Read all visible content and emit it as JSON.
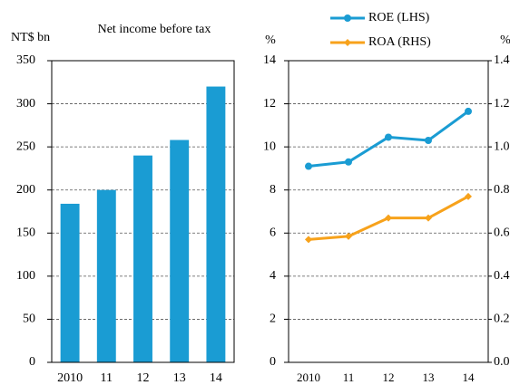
{
  "chart_data": [
    {
      "type": "bar",
      "title": "Net income before tax",
      "ylabel": "NT$ bn",
      "categories": [
        "2010",
        "11",
        "12",
        "13",
        "14"
      ],
      "values": [
        184,
        200,
        240,
        258,
        320
      ],
      "color": "#1a9cd3",
      "ylim": [
        0,
        350
      ],
      "yticks": [
        0,
        50,
        100,
        150,
        200,
        250,
        300,
        350
      ],
      "grid": true
    },
    {
      "type": "line",
      "ylabel": "%",
      "y2label": "%",
      "categories": [
        "2010",
        "11",
        "12",
        "13",
        "14"
      ],
      "series": [
        {
          "name": "ROE (LHS)",
          "color": "#1a9cd3",
          "values": [
            9.1,
            9.3,
            10.45,
            10.3,
            11.65
          ]
        },
        {
          "name": "ROA (RHS)",
          "color": "#f7a21b",
          "axis": "y2",
          "values": [
            0.57,
            0.585,
            0.67,
            0.67,
            0.77
          ]
        }
      ],
      "ylim": [
        0,
        14
      ],
      "yticks": [
        0,
        2,
        4,
        6,
        8,
        10,
        12,
        14
      ],
      "y2lim": [
        0,
        1.4
      ],
      "y2ticks": [
        {
          "value": 0,
          "label": "0.0"
        },
        0.2,
        0.4,
        0.6,
        0.8,
        {
          "value": 1,
          "label": "1.0"
        },
        1.2,
        1.4
      ],
      "grid": true
    }
  ]
}
